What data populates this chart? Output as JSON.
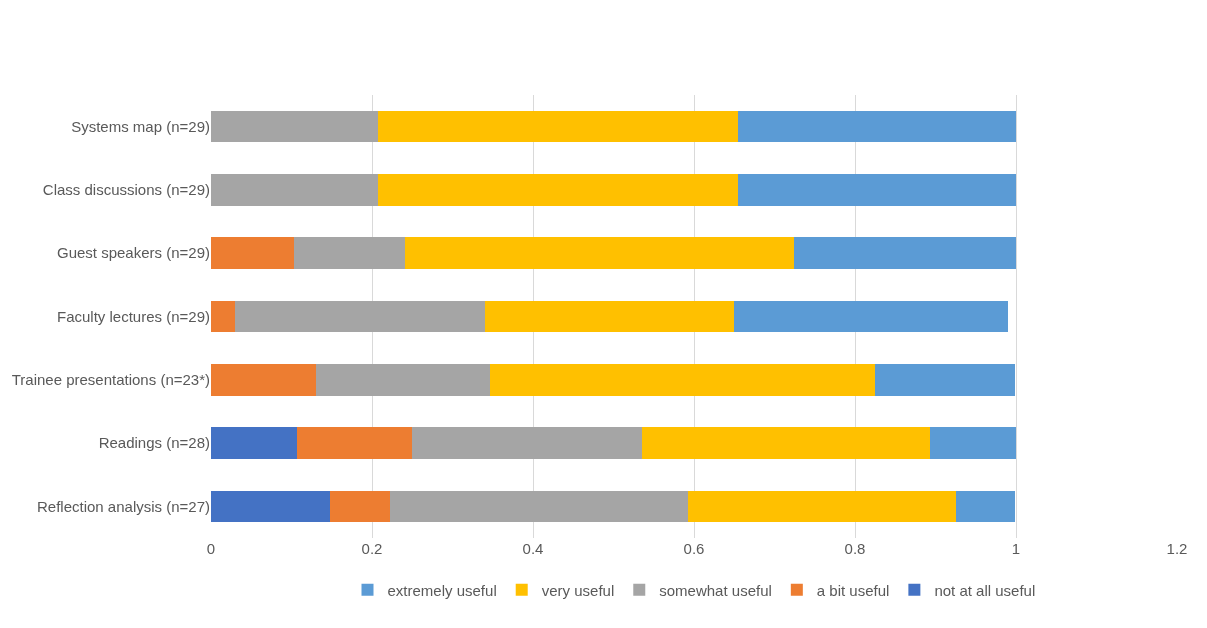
{
  "chart_data": {
    "type": "bar",
    "orientation": "horizontal",
    "stacked": true,
    "categories": [
      "Systems map (n=29)",
      "Class discussions (n=29)",
      "Guest speakers (n=29)",
      "Faculty lectures (n=29)",
      "Trainee presentations (n=23*)",
      "Readings (n=28)",
      "Reflection analysis (n=27)"
    ],
    "series": [
      {
        "name": "not at all useful",
        "color": "#4472c4",
        "values": [
          0,
          0,
          0,
          0,
          0,
          0.107,
          0.148
        ]
      },
      {
        "name": "a bit useful",
        "color": "#ed7d31",
        "values": [
          0,
          0,
          0.103,
          0.03,
          0.13,
          0.143,
          0.074
        ]
      },
      {
        "name": "somewhat useful",
        "color": "#a5a5a5",
        "values": [
          0.207,
          0.207,
          0.138,
          0.31,
          0.217,
          0.286,
          0.37
        ]
      },
      {
        "name": "very useful",
        "color": "#ffc000",
        "values": [
          0.448,
          0.448,
          0.483,
          0.31,
          0.478,
          0.357,
          0.333
        ]
      },
      {
        "name": "extremely useful",
        "color": "#5b9bd5",
        "values": [
          0.345,
          0.345,
          0.276,
          0.34,
          0.174,
          0.107,
          0.074
        ]
      }
    ],
    "xlim": [
      0,
      1.2
    ],
    "xticks": [
      0,
      0.2,
      0.4,
      0.6,
      0.8,
      1,
      1.2
    ],
    "grid": "x",
    "legend": "bottom"
  }
}
